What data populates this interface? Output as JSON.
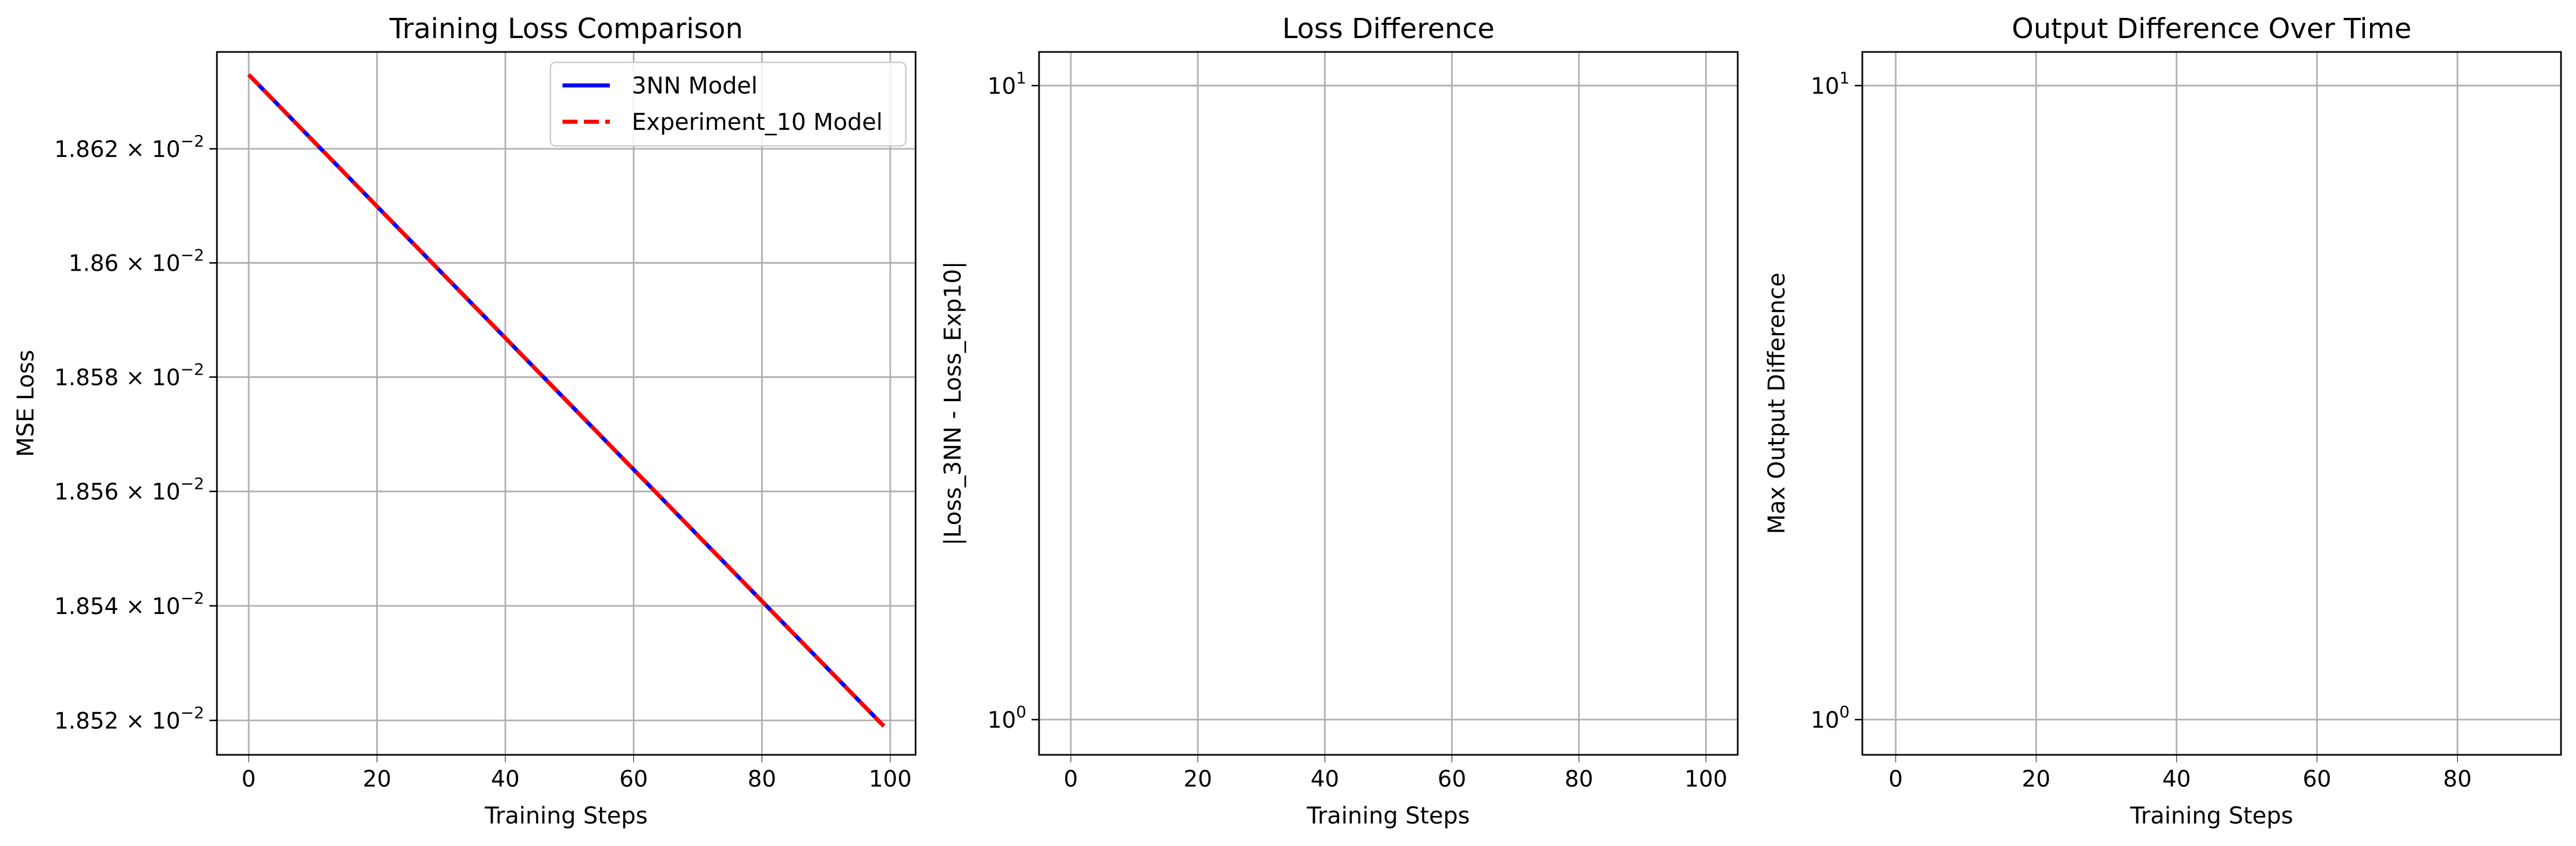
{
  "chart_data": [
    {
      "type": "line",
      "title": "Training Loss Comparison",
      "xlabel": "Training Steps",
      "ylabel": "MSE Loss",
      "yscale": "log",
      "grid": true,
      "legend_position": "top-right",
      "xlim": [
        -4.95,
        103.95
      ],
      "ylim": [
        0.018514,
        0.018637
      ],
      "x_ticks": [
        {
          "value": 0,
          "label": "0"
        },
        {
          "value": 20,
          "label": "20"
        },
        {
          "value": 40,
          "label": "40"
        },
        {
          "value": 60,
          "label": "60"
        },
        {
          "value": 80,
          "label": "80"
        },
        {
          "value": 100,
          "label": "100"
        }
      ],
      "y_ticks": [
        {
          "value": 0.01852,
          "mantissa": "1.852",
          "exponent": "−2"
        },
        {
          "value": 0.01854,
          "mantissa": "1.854",
          "exponent": "−2"
        },
        {
          "value": 0.01856,
          "mantissa": "1.856",
          "exponent": "−2"
        },
        {
          "value": 0.01858,
          "mantissa": "1.858",
          "exponent": "−2"
        },
        {
          "value": 0.0186,
          "mantissa": "1.86",
          "exponent": "−2"
        },
        {
          "value": 0.01862,
          "mantissa": "1.862",
          "exponent": "−2"
        }
      ],
      "series": [
        {
          "name": "3NN Model",
          "color": "#0000ff",
          "style": "solid",
          "x": [
            0,
            99
          ],
          "y": [
            0.018633,
            0.018519
          ]
        },
        {
          "name": "Experiment_10 Model",
          "color": "#ff0000",
          "style": "dashed",
          "x": [
            0,
            99
          ],
          "y": [
            0.018633,
            0.018519
          ]
        }
      ]
    },
    {
      "type": "line",
      "title": "Loss Difference",
      "xlabel": "Training Steps",
      "ylabel": "|Loss_3NN - Loss_Exp10|",
      "yscale": "log",
      "grid": true,
      "xlim": [
        -5,
        105
      ],
      "ylim": [
        0.88,
        11.3
      ],
      "x_ticks": [
        {
          "value": 0,
          "label": "0"
        },
        {
          "value": 20,
          "label": "20"
        },
        {
          "value": 40,
          "label": "40"
        },
        {
          "value": 60,
          "label": "60"
        },
        {
          "value": 80,
          "label": "80"
        },
        {
          "value": 100,
          "label": "100"
        }
      ],
      "y_ticks": [
        {
          "value": 1,
          "mantissa": "10",
          "exponent": "0"
        },
        {
          "value": 10,
          "mantissa": "10",
          "exponent": "1"
        }
      ],
      "series": []
    },
    {
      "type": "line",
      "title": "Output Difference Over Time",
      "xlabel": "Training Steps",
      "ylabel": "Max Output Difference",
      "yscale": "log",
      "grid": true,
      "xlim": [
        -4.75,
        94.75
      ],
      "ylim": [
        0.88,
        11.3
      ],
      "x_ticks": [
        {
          "value": 0,
          "label": "0"
        },
        {
          "value": 20,
          "label": "20"
        },
        {
          "value": 40,
          "label": "40"
        },
        {
          "value": 60,
          "label": "60"
        },
        {
          "value": 80,
          "label": "80"
        }
      ],
      "y_ticks": [
        {
          "value": 1,
          "mantissa": "10",
          "exponent": "0"
        },
        {
          "value": 10,
          "mantissa": "10",
          "exponent": "1"
        }
      ],
      "series": []
    }
  ]
}
